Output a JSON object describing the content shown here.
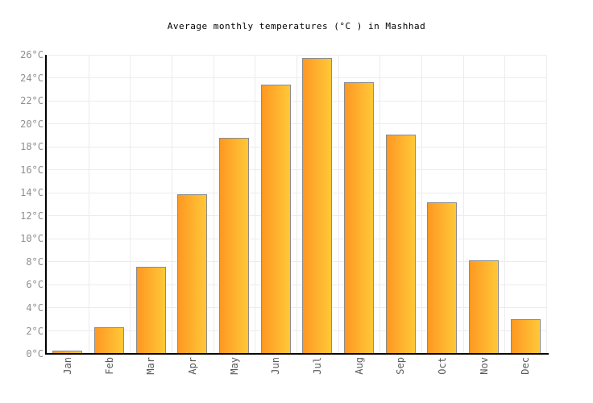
{
  "chart_data": {
    "type": "bar",
    "title": "Average monthly temperatures (°C ) in Mashhad",
    "categories": [
      "Jan",
      "Feb",
      "Mar",
      "Apr",
      "May",
      "Jun",
      "Jul",
      "Aug",
      "Sep",
      "Oct",
      "Nov",
      "Dec"
    ],
    "values": [
      0.3,
      2.3,
      7.6,
      13.9,
      18.8,
      23.4,
      25.7,
      23.6,
      19.1,
      13.2,
      8.1,
      3.0
    ],
    "xlabel": "",
    "ylabel": "",
    "ylim": [
      0,
      26
    ],
    "ytick_step": 2,
    "ytick_suffix": "°C",
    "grid": "both, light gray, horizontal every 2°C and vertical at column boundaries",
    "legend_position": "none",
    "colors": {
      "bar_gradient_left": "#ff9823",
      "bar_gradient_right": "#ffc838",
      "bar_border": "#8c8c8c",
      "gridline": "#ececec",
      "axis_line": "#000000",
      "y_tick_text": "#8f8f8f",
      "x_tick_text": "#5a5a5a",
      "title_text": "#000000",
      "background": "#ffffff"
    }
  }
}
